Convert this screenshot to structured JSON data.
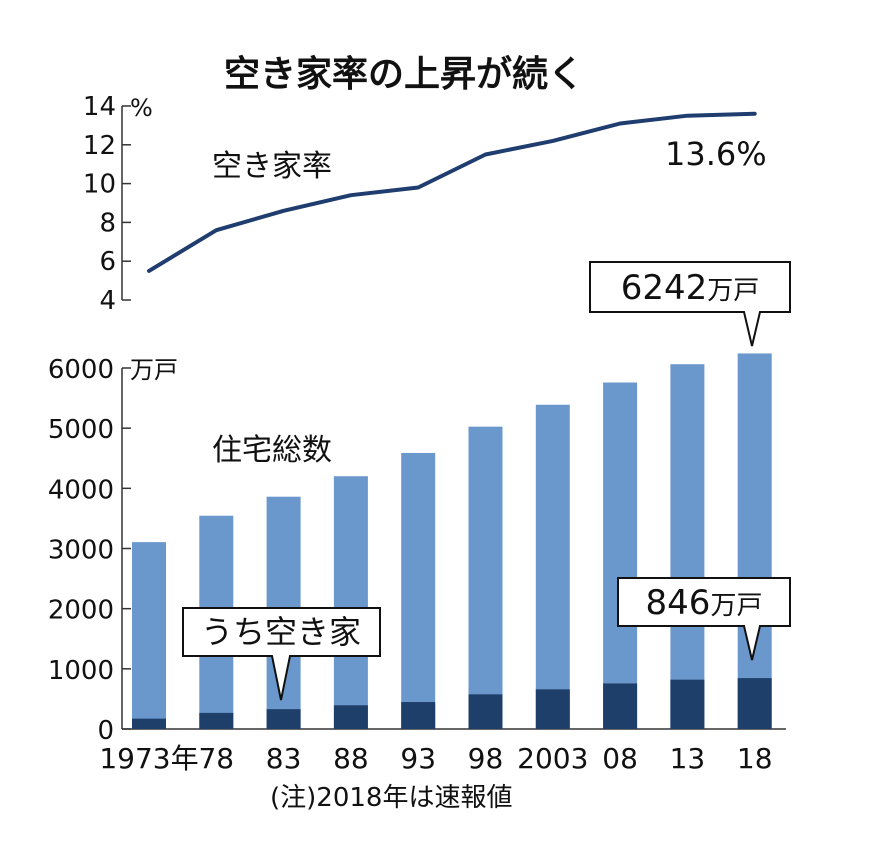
{
  "title": "空き家率の上昇が続く",
  "note": "(注)2018年は速報値",
  "line_label": "空き家率",
  "line_unit": "%",
  "line_end_label": "13.6%",
  "bar_label": "住宅総数",
  "bar_unit": "万戸",
  "callout_total_value": "6242",
  "callout_total_unit": "万戸",
  "callout_vacant_value": "846",
  "callout_vacant_unit": "万戸",
  "callout_vacant_label": "うち空き家",
  "colors": {
    "line": "#1f3d6e",
    "total_bar": "#6a98cc",
    "vacant_bar": "#1f3f6b",
    "axis": "#333333"
  },
  "chart_data": [
    {
      "type": "line",
      "title": "空き家率の上昇が続く",
      "categories": [
        "1973年",
        "78",
        "83",
        "88",
        "93",
        "98",
        "2003",
        "08",
        "13",
        "18"
      ],
      "series": [
        {
          "name": "空き家率",
          "values": [
            5.5,
            7.6,
            8.6,
            9.4,
            9.8,
            11.5,
            12.2,
            13.1,
            13.5,
            13.6
          ]
        }
      ],
      "yunit": "%",
      "ylim": [
        4,
        14
      ],
      "yticks": [
        4,
        6,
        8,
        10,
        12,
        14
      ],
      "grid": false
    },
    {
      "type": "bar",
      "categories": [
        "1973年",
        "78",
        "83",
        "88",
        "93",
        "98",
        "2003",
        "08",
        "13",
        "18"
      ],
      "series": [
        {
          "name": "住宅総数",
          "values": [
            3106,
            3545,
            3861,
            4201,
            4588,
            5025,
            5389,
            5759,
            6063,
            6242
          ]
        },
        {
          "name": "うち空き家",
          "values": [
            172,
            268,
            330,
            394,
            448,
            576,
            659,
            757,
            820,
            846
          ]
        }
      ],
      "yunit": "万戸",
      "ylim": [
        0,
        6000
      ],
      "yticks": [
        0,
        1000,
        2000,
        3000,
        4000,
        5000,
        6000
      ],
      "grid": false
    }
  ]
}
